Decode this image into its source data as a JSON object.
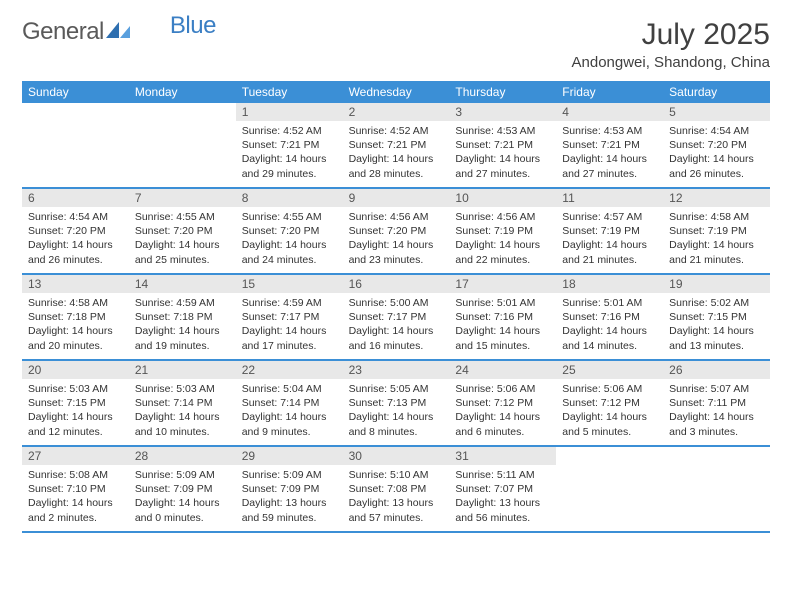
{
  "brand": {
    "text1": "General",
    "text2": "Blue"
  },
  "title": "July 2025",
  "location": "Andongwei, Shandong, China",
  "colors": {
    "header_bar": "#3b8fd6",
    "daynum_bg": "#e8e8e8",
    "rule": "#3b8fd6",
    "logo_gray": "#5a5a5a",
    "logo_blue": "#3b7fc4"
  },
  "days_of_week": [
    "Sunday",
    "Monday",
    "Tuesday",
    "Wednesday",
    "Thursday",
    "Friday",
    "Saturday"
  ],
  "weeks": [
    [
      {
        "n": "",
        "sr": "",
        "ss": "",
        "dl": ""
      },
      {
        "n": "",
        "sr": "",
        "ss": "",
        "dl": ""
      },
      {
        "n": "1",
        "sr": "4:52 AM",
        "ss": "7:21 PM",
        "dl": "14 hours and 29 minutes."
      },
      {
        "n": "2",
        "sr": "4:52 AM",
        "ss": "7:21 PM",
        "dl": "14 hours and 28 minutes."
      },
      {
        "n": "3",
        "sr": "4:53 AM",
        "ss": "7:21 PM",
        "dl": "14 hours and 27 minutes."
      },
      {
        "n": "4",
        "sr": "4:53 AM",
        "ss": "7:21 PM",
        "dl": "14 hours and 27 minutes."
      },
      {
        "n": "5",
        "sr": "4:54 AM",
        "ss": "7:20 PM",
        "dl": "14 hours and 26 minutes."
      }
    ],
    [
      {
        "n": "6",
        "sr": "4:54 AM",
        "ss": "7:20 PM",
        "dl": "14 hours and 26 minutes."
      },
      {
        "n": "7",
        "sr": "4:55 AM",
        "ss": "7:20 PM",
        "dl": "14 hours and 25 minutes."
      },
      {
        "n": "8",
        "sr": "4:55 AM",
        "ss": "7:20 PM",
        "dl": "14 hours and 24 minutes."
      },
      {
        "n": "9",
        "sr": "4:56 AM",
        "ss": "7:20 PM",
        "dl": "14 hours and 23 minutes."
      },
      {
        "n": "10",
        "sr": "4:56 AM",
        "ss": "7:19 PM",
        "dl": "14 hours and 22 minutes."
      },
      {
        "n": "11",
        "sr": "4:57 AM",
        "ss": "7:19 PM",
        "dl": "14 hours and 21 minutes."
      },
      {
        "n": "12",
        "sr": "4:58 AM",
        "ss": "7:19 PM",
        "dl": "14 hours and 21 minutes."
      }
    ],
    [
      {
        "n": "13",
        "sr": "4:58 AM",
        "ss": "7:18 PM",
        "dl": "14 hours and 20 minutes."
      },
      {
        "n": "14",
        "sr": "4:59 AM",
        "ss": "7:18 PM",
        "dl": "14 hours and 19 minutes."
      },
      {
        "n": "15",
        "sr": "4:59 AM",
        "ss": "7:17 PM",
        "dl": "14 hours and 17 minutes."
      },
      {
        "n": "16",
        "sr": "5:00 AM",
        "ss": "7:17 PM",
        "dl": "14 hours and 16 minutes."
      },
      {
        "n": "17",
        "sr": "5:01 AM",
        "ss": "7:16 PM",
        "dl": "14 hours and 15 minutes."
      },
      {
        "n": "18",
        "sr": "5:01 AM",
        "ss": "7:16 PM",
        "dl": "14 hours and 14 minutes."
      },
      {
        "n": "19",
        "sr": "5:02 AM",
        "ss": "7:15 PM",
        "dl": "14 hours and 13 minutes."
      }
    ],
    [
      {
        "n": "20",
        "sr": "5:03 AM",
        "ss": "7:15 PM",
        "dl": "14 hours and 12 minutes."
      },
      {
        "n": "21",
        "sr": "5:03 AM",
        "ss": "7:14 PM",
        "dl": "14 hours and 10 minutes."
      },
      {
        "n": "22",
        "sr": "5:04 AM",
        "ss": "7:14 PM",
        "dl": "14 hours and 9 minutes."
      },
      {
        "n": "23",
        "sr": "5:05 AM",
        "ss": "7:13 PM",
        "dl": "14 hours and 8 minutes."
      },
      {
        "n": "24",
        "sr": "5:06 AM",
        "ss": "7:12 PM",
        "dl": "14 hours and 6 minutes."
      },
      {
        "n": "25",
        "sr": "5:06 AM",
        "ss": "7:12 PM",
        "dl": "14 hours and 5 minutes."
      },
      {
        "n": "26",
        "sr": "5:07 AM",
        "ss": "7:11 PM",
        "dl": "14 hours and 3 minutes."
      }
    ],
    [
      {
        "n": "27",
        "sr": "5:08 AM",
        "ss": "7:10 PM",
        "dl": "14 hours and 2 minutes."
      },
      {
        "n": "28",
        "sr": "5:09 AM",
        "ss": "7:09 PM",
        "dl": "14 hours and 0 minutes."
      },
      {
        "n": "29",
        "sr": "5:09 AM",
        "ss": "7:09 PM",
        "dl": "13 hours and 59 minutes."
      },
      {
        "n": "30",
        "sr": "5:10 AM",
        "ss": "7:08 PM",
        "dl": "13 hours and 57 minutes."
      },
      {
        "n": "31",
        "sr": "5:11 AM",
        "ss": "7:07 PM",
        "dl": "13 hours and 56 minutes."
      },
      {
        "n": "",
        "sr": "",
        "ss": "",
        "dl": ""
      },
      {
        "n": "",
        "sr": "",
        "ss": "",
        "dl": ""
      }
    ]
  ],
  "labels": {
    "sunrise": "Sunrise:",
    "sunset": "Sunset:",
    "daylight": "Daylight:"
  }
}
